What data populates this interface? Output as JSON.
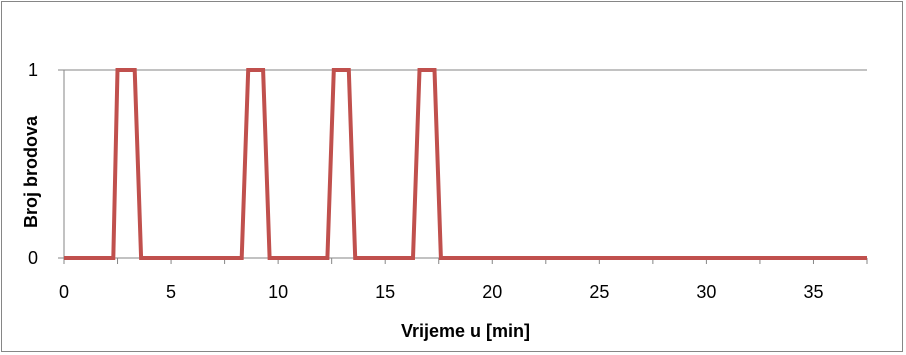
{
  "chart_data": {
    "type": "line",
    "title": "",
    "xlabel": "Vrijeme u [min]",
    "ylabel": "Broj brodova",
    "xlim": [
      0,
      37.5
    ],
    "ylim": [
      0,
      1
    ],
    "xticks": [
      0,
      5,
      10,
      15,
      20,
      25,
      30,
      35
    ],
    "yticks": [
      0,
      1
    ],
    "grid": "horizontal",
    "legend": "none",
    "line_color": "#C0504D",
    "series": [
      {
        "x": [
          0,
          2.3,
          2.5,
          3.3,
          3.6,
          8.3,
          8.6,
          9.3,
          9.6,
          12.3,
          12.6,
          13.3,
          13.6,
          16.3,
          16.6,
          17.3,
          17.6,
          37.5
        ],
        "values": [
          0,
          0,
          1,
          1,
          0,
          0,
          1,
          1,
          0,
          0,
          1,
          1,
          0,
          0,
          1,
          1,
          0,
          0
        ]
      }
    ]
  }
}
